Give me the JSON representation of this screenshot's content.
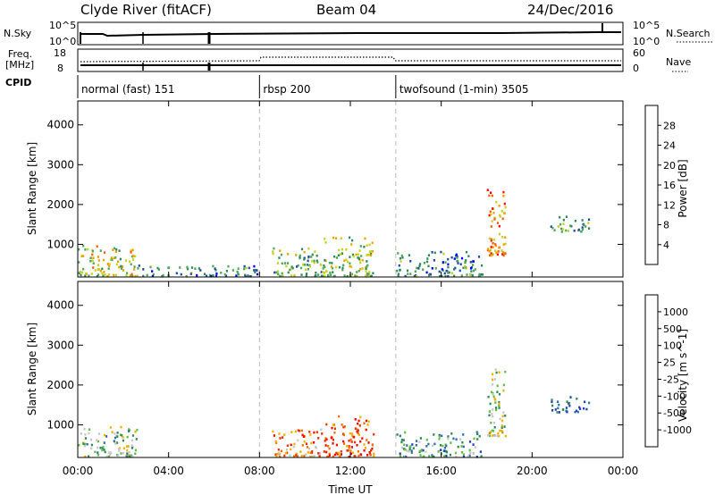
{
  "header": {
    "station": "Clyde River (fitACF)",
    "beam": "Beam 04",
    "date": "24/Dec/2016"
  },
  "panels": {
    "nsky": {
      "left_label": "N.Sky",
      "left_ticks": [
        "10^5",
        "10^0"
      ],
      "right_ticks": [
        "10^5",
        "10^0"
      ],
      "right_label": "N.Search"
    },
    "freq": {
      "left_label_1": "Freq.",
      "left_label_2": "[MHz]",
      "left_ticks": [
        "18",
        "8"
      ],
      "right_ticks": [
        "60",
        "0"
      ],
      "right_label": "Nave"
    },
    "cpid": {
      "label": "CPID",
      "segments": [
        {
          "label": "normal (fast) 151",
          "start_hour": 0
        },
        {
          "label": "rbsp 200",
          "start_hour": 8
        },
        {
          "label": "twofsound (1-min) 3505",
          "start_hour": 14
        }
      ]
    }
  },
  "chart_data": [
    {
      "type": "heatmap",
      "title": "",
      "quantity": "Power",
      "ylabel": "Slant Range [km]",
      "xlim_hours": [
        0,
        24
      ],
      "ylim": [
        180,
        4600
      ],
      "yticks": [
        "1000",
        "2000",
        "3000",
        "4000"
      ],
      "colorbar": {
        "label": "Power [dB]",
        "ticks": [
          "4",
          "8",
          "12",
          "16",
          "20",
          "24",
          "28"
        ],
        "colors": [
          "#0000ff",
          "#1e4aa0",
          "#2f8a5a",
          "#4aa85a",
          "#c8d020",
          "#f0a000",
          "#f06000",
          "#ff0000"
        ]
      },
      "clusters": [
        {
          "t0": 0.0,
          "t1": 2.6,
          "r0": 180,
          "r1": 950,
          "level": 0.55
        },
        {
          "t0": 2.6,
          "t1": 8.0,
          "r0": 180,
          "r1": 450,
          "level": 0.3
        },
        {
          "t0": 8.5,
          "t1": 10.8,
          "r0": 180,
          "r1": 900,
          "level": 0.45
        },
        {
          "t0": 10.8,
          "t1": 13.0,
          "r0": 180,
          "r1": 1200,
          "level": 0.5
        },
        {
          "t0": 14.0,
          "t1": 17.8,
          "r0": 180,
          "r1": 800,
          "level": 0.3
        },
        {
          "t0": 18.0,
          "t1": 18.8,
          "r0": 700,
          "r1": 2400,
          "level": 0.75
        },
        {
          "t0": 20.8,
          "t1": 22.5,
          "r0": 1300,
          "r1": 1700,
          "level": 0.35
        }
      ]
    },
    {
      "type": "heatmap",
      "title": "",
      "quantity": "Velocity",
      "xlabel": "Time UT",
      "ylabel": "Slant Range [km]",
      "xlim_hours": [
        0,
        24
      ],
      "ylim": [
        180,
        4600
      ],
      "xticks": [
        "00:00",
        "04:00",
        "08:00",
        "12:00",
        "16:00",
        "20:00",
        "00:00"
      ],
      "yticks": [
        "1000",
        "2000",
        "3000",
        "4000"
      ],
      "colorbar": {
        "label": "Velocity [m s^-1]",
        "ticks": [
          "1000",
          "500",
          "100",
          "25",
          "-25",
          "-100",
          "-500",
          "-1000"
        ],
        "colors": [
          "#1f3fbf",
          "#2f6fa0",
          "#2f8a5a",
          "#5cc040",
          "#c8c8c8",
          "#f0b000",
          "#f07000",
          "#f03000",
          "#ff0000"
        ]
      },
      "clusters": [
        {
          "t0": 0.0,
          "t1": 2.6,
          "r0": 180,
          "r1": 950,
          "level": 0.4
        },
        {
          "t0": 8.5,
          "t1": 10.8,
          "r0": 180,
          "r1": 900,
          "level": 0.7
        },
        {
          "t0": 10.8,
          "t1": 13.0,
          "r0": 180,
          "r1": 1200,
          "level": 0.8
        },
        {
          "t0": 14.0,
          "t1": 17.8,
          "r0": 180,
          "r1": 800,
          "level": 0.3
        },
        {
          "t0": 18.0,
          "t1": 18.8,
          "r0": 700,
          "r1": 2400,
          "level": 0.45
        },
        {
          "t0": 20.8,
          "t1": 22.5,
          "r0": 1300,
          "r1": 1700,
          "level": 0.1
        }
      ]
    }
  ]
}
